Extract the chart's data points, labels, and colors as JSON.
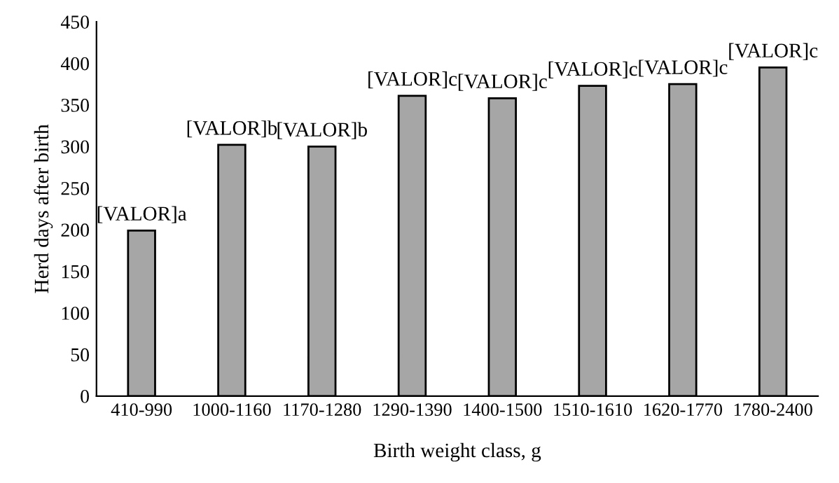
{
  "chart_data": {
    "type": "bar",
    "xlabel": "Birth weight class, g",
    "ylabel": "Herd days after birth",
    "categories": [
      "410-990",
      "1000-1160",
      "1170-1280",
      "1290-1390",
      "1400-1500",
      "1510-1610",
      "1620-1770",
      "1780-2400"
    ],
    "values": [
      199,
      302,
      300,
      361,
      358,
      373,
      375,
      395
    ],
    "value_labels": [
      "[VALOR]a",
      "[VALOR]b",
      "[VALOR]b",
      "[VALOR]c",
      "[VALOR]c",
      "[VALOR]c",
      "[VALOR]c",
      "[VALOR]c"
    ],
    "color": "#a6a6a6",
    "ylim": [
      0,
      450
    ],
    "yticks": [
      0,
      50,
      100,
      150,
      200,
      250,
      300,
      350,
      400,
      450
    ],
    "grid": false
  }
}
